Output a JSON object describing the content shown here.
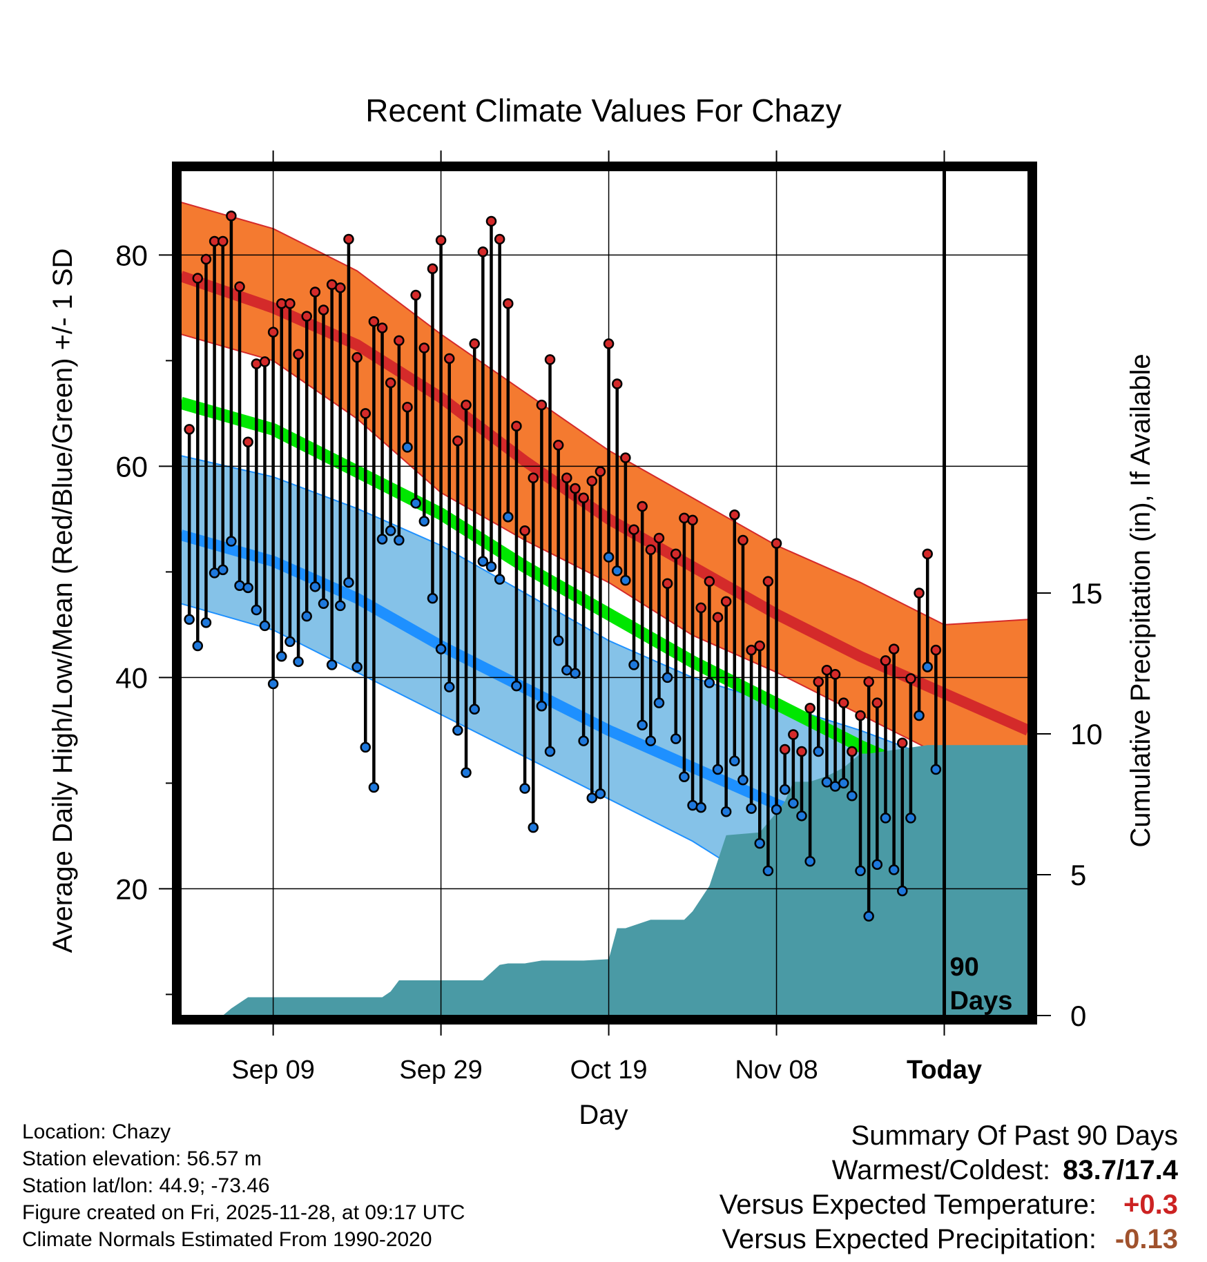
{
  "chart_data": {
    "type": "line",
    "title": "Recent Climate Values For Chazy",
    "xlabel": "Day",
    "ylabel": "Average Daily High/Low/Mean (Red/Blue/Green) +/- 1 SD",
    "y2label": "Cumulative Precipitation (in), If Available",
    "ylim": [
      8,
      88
    ],
    "y2lim": [
      0,
      30
    ],
    "xlim": [
      -11,
      90
    ],
    "yticks": [
      "20",
      "40",
      "60",
      "80"
    ],
    "y2ticks": [
      "0",
      "5",
      "10",
      "15"
    ],
    "xticks": [
      {
        "x": 0,
        "label": "Sep 09"
      },
      {
        "x": 20,
        "label": "Sep 29"
      },
      {
        "x": 40,
        "label": "Oct 19"
      },
      {
        "x": 60,
        "label": "Nov 08"
      },
      {
        "x": 80,
        "label": "Today"
      }
    ],
    "today_x": 80,
    "today_label": "90 Days",
    "colors": {
      "high_band": "#f47a30",
      "high_mean": "#d42a2a",
      "low_band": "#85c2e8",
      "low_mean": "#1e90ff",
      "mean": "#00e600",
      "precip": "#4a9aa5",
      "overlap": "#8b1010",
      "high_dot": "#d42a2a",
      "low_dot": "#1e78dc"
    },
    "normals": {
      "x": [
        -11,
        0,
        10,
        20,
        30,
        40,
        50,
        60,
        70,
        80,
        90
      ],
      "high_mean": [
        78,
        75,
        71.5,
        66.5,
        60.5,
        55,
        50.5,
        46,
        42,
        38.5,
        35
      ],
      "high_upper": [
        85,
        82.5,
        78.5,
        72.5,
        67,
        61.5,
        57,
        52.5,
        49,
        45,
        45.5
      ],
      "high_lower": [
        72.5,
        70,
        64.5,
        57.5,
        53,
        49,
        44,
        40.5,
        36.5,
        32.5,
        25.5
      ],
      "low_mean": [
        53.5,
        51,
        47.5,
        43,
        39,
        35,
        31.5,
        28,
        25,
        22,
        19
      ],
      "low_upper": [
        61,
        59,
        56,
        52.5,
        48,
        43.5,
        40,
        37.5,
        35,
        32,
        30
      ],
      "low_lower": [
        47,
        44.5,
        40.5,
        36.5,
        32.5,
        28.5,
        24.5,
        19.5,
        16,
        13,
        10
      ],
      "mean": [
        66,
        63.5,
        59.5,
        55.5,
        50.5,
        46,
        41.5,
        37.5,
        33.5,
        30,
        26.5
      ]
    },
    "series": [
      {
        "name": "Daily High",
        "values": [
          63.5,
          77.8,
          79.6,
          81.3,
          81.3,
          83.7,
          77.0,
          62.3,
          69.7,
          69.9,
          72.7,
          75.4,
          75.4,
          70.6,
          74.2,
          76.5,
          74.8,
          77.2,
          76.9,
          81.5,
          70.3,
          65.0,
          73.7,
          73.1,
          67.9,
          71.9,
          65.6,
          76.2,
          71.2,
          78.7,
          81.4,
          70.2,
          62.4,
          65.8,
          71.6,
          80.3,
          83.2,
          81.5,
          75.4,
          63.8,
          53.9,
          58.9,
          65.8,
          70.1,
          62.0,
          58.9,
          57.9,
          57.0,
          58.6,
          59.5,
          71.6,
          67.8,
          60.8,
          54.0,
          56.2,
          52.1,
          53.2,
          48.9,
          51.7,
          55.1,
          54.9,
          46.6,
          49.1,
          45.7,
          47.2,
          55.4,
          53.0,
          42.6,
          43.0,
          49.1,
          52.7,
          33.2,
          34.6,
          33.0,
          37.1,
          39.6,
          40.7,
          40.3,
          37.6,
          33.0,
          36.4,
          39.6,
          37.6,
          41.6,
          42.7,
          33.8,
          39.9,
          48.0,
          51.7,
          42.6
        ]
      },
      {
        "name": "Daily Low",
        "values": [
          45.5,
          43.0,
          45.2,
          49.9,
          50.2,
          52.9,
          48.7,
          48.5,
          46.4,
          44.9,
          39.4,
          42.0,
          43.4,
          41.5,
          45.8,
          48.6,
          47.0,
          41.2,
          46.8,
          49.0,
          41.0,
          33.4,
          29.6,
          53.1,
          53.9,
          53.0,
          61.8,
          56.5,
          54.8,
          47.5,
          42.7,
          39.1,
          35.0,
          31.0,
          37.0,
          51.0,
          50.5,
          49.3,
          55.2,
          39.2,
          29.5,
          25.8,
          37.3,
          33.0,
          43.5,
          40.7,
          40.4,
          34.0,
          28.6,
          29.0,
          51.4,
          50.1,
          49.2,
          41.2,
          35.5,
          34.0,
          37.6,
          40.0,
          34.2,
          30.6,
          27.9,
          27.7,
          39.5,
          31.3,
          27.3,
          32.1,
          30.3,
          27.6,
          24.3,
          21.7,
          27.5,
          29.4,
          28.1,
          26.9,
          22.6,
          33.0,
          30.1,
          29.7,
          30.0,
          28.8,
          21.7,
          17.4,
          22.3,
          26.7,
          21.8,
          19.8,
          26.7,
          36.4,
          41.0,
          31.3
        ]
      },
      {
        "name": "Cumulative Precipitation",
        "x": [
          -6,
          -5,
          -3,
          0,
          5,
          10,
          13,
          14,
          15,
          16,
          20,
          25,
          27,
          28,
          30,
          32,
          35,
          37,
          40,
          41,
          42,
          45,
          49,
          50,
          52,
          54,
          58,
          60,
          61,
          62,
          64,
          66,
          68,
          70,
          71,
          78,
          80,
          90
        ],
        "values": [
          0,
          0.25,
          0.65,
          0.65,
          0.65,
          0.65,
          0.65,
          0.85,
          1.25,
          1.25,
          1.25,
          1.25,
          1.8,
          1.85,
          1.85,
          1.95,
          1.95,
          1.95,
          2.0,
          3.1,
          3.1,
          3.4,
          3.4,
          3.7,
          4.6,
          6.4,
          6.5,
          7.2,
          7.6,
          8.3,
          8.3,
          8.5,
          8.8,
          9.3,
          9.3,
          9.6,
          9.6,
          9.6
        ]
      }
    ]
  },
  "info": {
    "location": "Location: Chazy",
    "elevation": "Station elevation: 56.57 m",
    "latlon": "Station lat/lon: 44.9; -73.46",
    "created": "Figure created on Fri, 2025-11-28, at 09:17 UTC",
    "normals": "Climate Normals Estimated From 1990-2020"
  },
  "summary": {
    "heading": "Summary Of Past 90 Days",
    "warm_cold_label": "Warmest/Coldest:",
    "warm_cold_value": "83.7/17.4",
    "temp_label": "Versus Expected Temperature:",
    "temp_value": "+0.3",
    "temp_color": "#cc2222",
    "precip_label": "Versus Expected Precipitation:",
    "precip_value": "-0.13",
    "precip_color": "#a0522d"
  }
}
